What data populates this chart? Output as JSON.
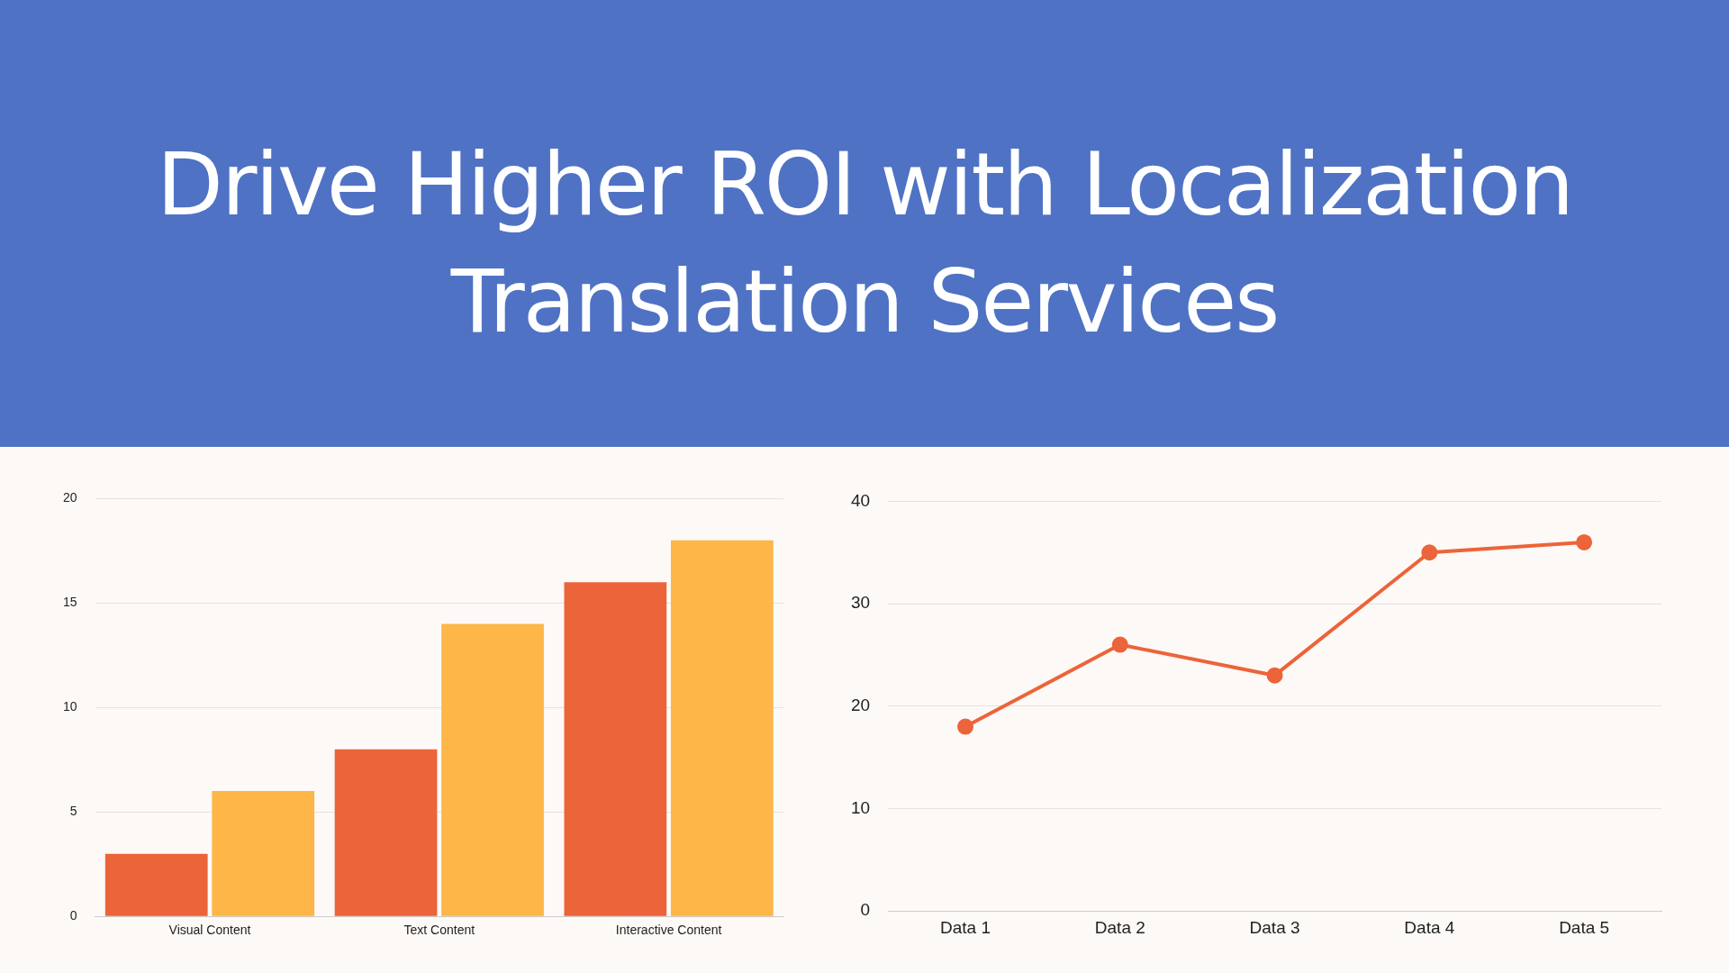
{
  "chart_data": [
    {
      "type": "bar",
      "title": "Drive Higher ROI with Localization Translation Services",
      "categories": [
        "Visual Content",
        "Text Content",
        "Interactive Content"
      ],
      "series": [
        {
          "color": "#ec6439",
          "values": [
            3,
            8,
            16
          ]
        },
        {
          "color": "#fdb647",
          "values": [
            6,
            14,
            18
          ]
        }
      ],
      "ylim": [
        0,
        20
      ],
      "yticks": [
        0,
        5,
        10,
        15,
        20
      ],
      "grid": "y",
      "legend": false
    },
    {
      "type": "line",
      "categories": [
        "Data 1",
        "Data 2",
        "Data 3",
        "Data 4",
        "Data 5"
      ],
      "series": [
        {
          "color": "#ec6439",
          "values": [
            18,
            26,
            23,
            35,
            36
          ]
        }
      ],
      "ylim": [
        0,
        40
      ],
      "yticks": [
        0,
        10,
        20,
        30,
        40
      ],
      "grid": "y",
      "legend": false,
      "marker": "circle"
    }
  ]
}
